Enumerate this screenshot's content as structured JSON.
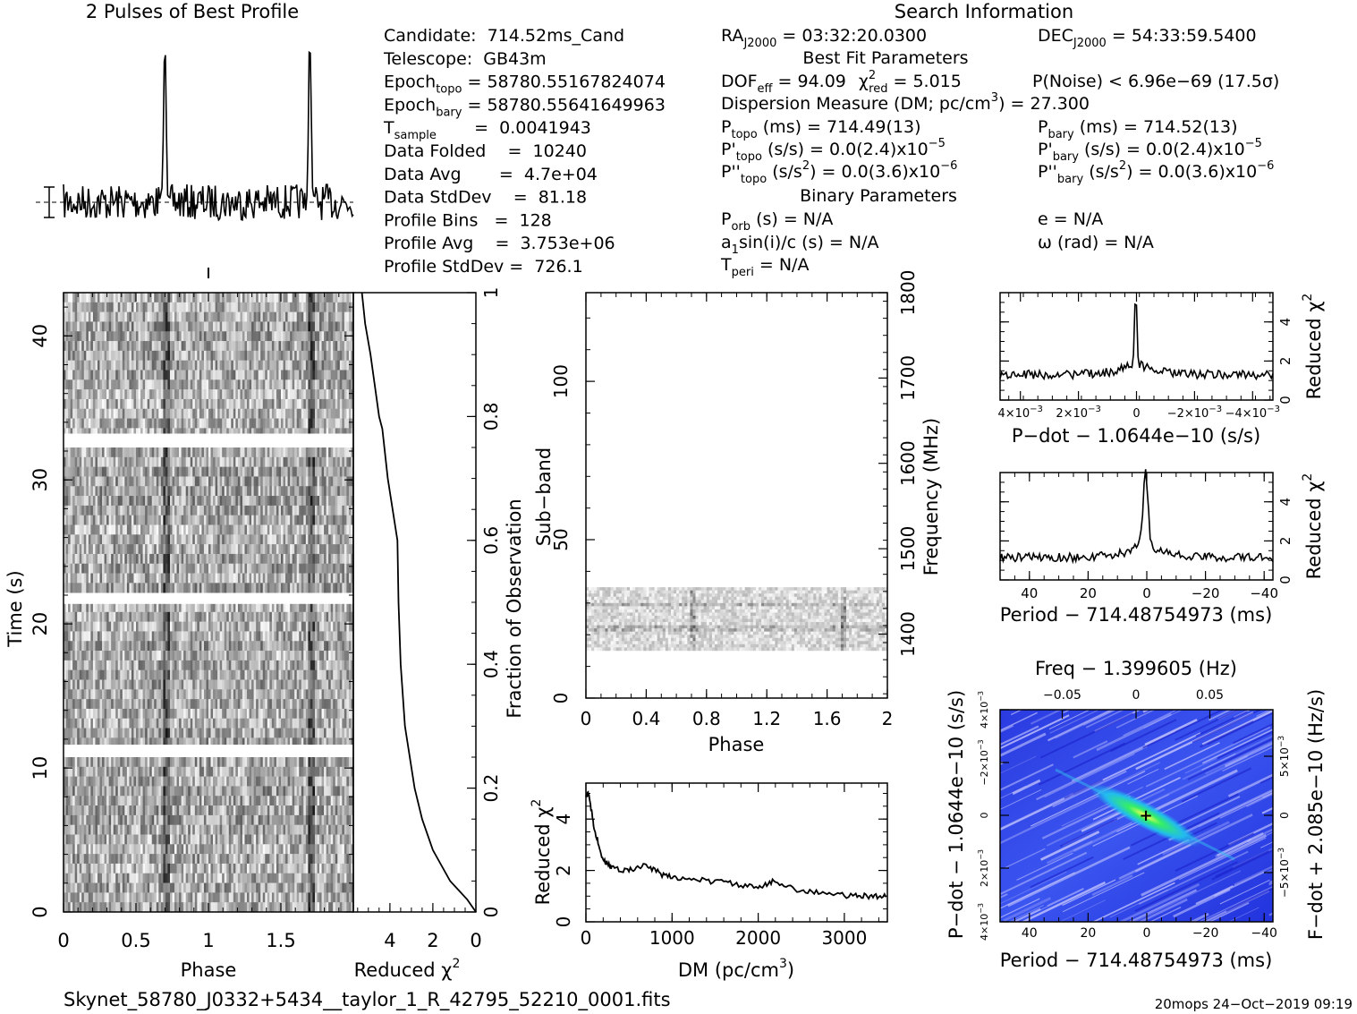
{
  "profile": {
    "title": "2 Pulses of Best Profile",
    "chart_data": {
      "type": "line",
      "title": "2 Pulses of Best Profile",
      "x_range": [
        0,
        2
      ],
      "peaks_at_phase": [
        0.7,
        1.7
      ],
      "pulses": 2
    }
  },
  "info": {
    "search_title": "Search Information",
    "col1": [
      [
        "Candidate:  714.52ms_Cand"
      ],
      [
        "Telescope:  GB43m"
      ],
      [
        "Epoch",
        "topo",
        " = 58780.55167824074"
      ],
      [
        "Epoch",
        "bary",
        " = 58780.55641649963"
      ],
      [
        "T",
        "sample",
        "       =  0.0041943"
      ],
      [
        "Data Folded    =  10240"
      ],
      [
        "Data Avg       =  4.7e+04"
      ],
      [
        "Data StdDev    =  81.18"
      ],
      [
        "Profile Bins   =  128"
      ],
      [
        "Profile Avg    =  3.753e+06"
      ],
      [
        "Profile StdDev =  726.1"
      ]
    ],
    "ra": "RA",
    "ra_sub": "J2000",
    "ra_val": " = 03:32:20.0300",
    "dec": "DEC",
    "dec_sub": "J2000",
    "dec_val": " = 54:33:59.5400",
    "best_fit_title": "Best Fit Parameters",
    "dof": "DOF",
    "dof_sub": "eff",
    "dof_val": " = 94.09",
    "chi": "χ",
    "chi_sup": "2",
    "chi_sub": "red",
    "chi_val": " = 5.015",
    "pnoise": "P(Noise) < 6.96e−69  (17.5σ)",
    "dm_line": "Dispersion Measure (DM; pc/cm",
    "dm_sup": "3",
    "dm_val": ") = 27.300",
    "ptopo": "P",
    "ptopo_sub": "topo",
    "ptopo_val": " (ms) =  714.49(13)",
    "pbary": "P",
    "pbary_sub": "bary",
    "pbary_val": " (ms) =  714.52(13)",
    "pdtopo": "P'",
    "pdtopo_sub": "topo",
    "pdtopo_val": " (s/s) = 0.0(2.4)x10",
    "pdtopo_exp": "−5",
    "pdbary": "P'",
    "pdbary_sub": "bary",
    "pdbary_val": " (s/s) = 0.0(2.4)x10",
    "pdbary_exp": "−5",
    "pddtopo": "P''",
    "pddtopo_sub": "topo",
    "pddtopo_val": " (s/s",
    "pddtopo_sup": "2",
    "pddtopo_val2": ") = 0.0(3.6)x10",
    "pddtopo_exp": "−6",
    "pddbary": "P''",
    "pddbary_sub": "bary",
    "pddbary_val": " (s/s",
    "pddbary_sup": "2",
    "pddbary_val2": ") = 0.0(3.6)x10",
    "pddbary_exp": "−6",
    "binary_title": "Binary Parameters",
    "porb": "P",
    "porb_sub": "orb",
    "porb_val": " (s) = N/A",
    "ecc": "e = N/A",
    "a1sini": "a",
    "a1sini_sub": "1",
    "a1sini_val": "sin(i)/c (s) = N/A",
    "omega": "ω (rad) = N/A",
    "tperi": "T",
    "tperi_sub": "peri",
    "tperi_val": " = N/A"
  },
  "time_phase": {
    "ylabel": "Time (s)",
    "xlabel": "Phase",
    "xticks": [
      "0",
      "0.5",
      "1",
      "1.5"
    ],
    "yticks": [
      "0",
      "10",
      "20",
      "30",
      "40"
    ],
    "chart_data": {
      "type": "heatmap",
      "x_range": [
        0,
        2
      ],
      "y_range": [
        0,
        43
      ],
      "gaps_at_time": [
        11.3,
        21.7,
        32.9
      ],
      "pulse_phase": [
        0.7,
        1.7
      ]
    }
  },
  "chi_vs_time": {
    "xlabel": "Reduced χ",
    "xlabel_sup": "2",
    "xticks": [
      "4",
      "2",
      "0"
    ],
    "right_label": "Fraction of Observation",
    "right_ticks": [
      "0",
      "0.2",
      "0.4",
      "0.6",
      "0.8",
      "1"
    ],
    "chart_data": {
      "type": "line",
      "xlim": [
        5.7,
        0
      ],
      "ylim": [
        0,
        1
      ],
      "fraction": [
        0,
        0.02,
        0.05,
        0.1,
        0.15,
        0.2,
        0.3,
        0.4,
        0.5,
        0.6,
        0.7,
        0.78,
        0.8,
        0.85,
        0.9,
        0.95,
        1.0
      ],
      "chi": [
        0,
        0.4,
        1.2,
        2.0,
        2.5,
        2.85,
        3.3,
        3.5,
        3.6,
        3.65,
        4.1,
        4.35,
        4.5,
        4.7,
        4.9,
        5.15,
        5.3
      ]
    }
  },
  "subband": {
    "ylabel": "Sub−band",
    "xlabel": "Phase",
    "xticks": [
      "0",
      "0.4",
      "0.8",
      "1.2",
      "1.6",
      "2"
    ],
    "yticks": [
      "0",
      "50",
      "100"
    ],
    "right_label": "Frequency (MHz)",
    "right_ticks": [
      "1400",
      "1500",
      "1600",
      "1700",
      "1800"
    ],
    "chart_data": {
      "type": "heatmap",
      "x_range": [
        0,
        2
      ],
      "y_range": [
        0,
        128
      ],
      "occupied_subbands": [
        15,
        35
      ],
      "freq_range_mhz": [
        1325,
        1800
      ]
    }
  },
  "dm": {
    "ylabel": "Reduced χ",
    "ylabel_sup": "2",
    "xlabel": "DM (pc/cm",
    "xlabel_sup": "3",
    "xlabel_end": ")",
    "xticks": [
      "0",
      "1000",
      "2000",
      "3000"
    ],
    "yticks": [
      "0",
      "2",
      "4"
    ],
    "chart_data": {
      "type": "line",
      "xlim": [
        0,
        3500
      ],
      "ylim": [
        0,
        5.4
      ],
      "x": [
        0,
        30,
        100,
        200,
        300,
        500,
        700,
        900,
        1100,
        1400,
        1700,
        2000,
        2200,
        2500,
        2800,
        3100,
        3300,
        3500
      ],
      "y": [
        4.9,
        5.0,
        3.6,
        2.4,
        2.1,
        2.0,
        2.2,
        1.8,
        1.7,
        1.6,
        1.5,
        1.3,
        1.6,
        1.2,
        1.1,
        1.0,
        1.0,
        1.0
      ]
    }
  },
  "pdot": {
    "xlabel": "P−dot − 1.0644e−10 (s/s)",
    "ylabel": "Reduced χ",
    "ylabel_sup": "2",
    "xticks": [
      "4×10",
      "2×10",
      "0",
      "−2×10",
      "−4×10"
    ],
    "xticks_exp": [
      "−3",
      "−3",
      "",
      "−3",
      "−3"
    ],
    "yticks": [
      "0",
      "2",
      "4"
    ],
    "chart_data": {
      "type": "line",
      "x_range": [
        0.0047,
        -0.0047
      ],
      "ylim": [
        0,
        5.5
      ],
      "peak": {
        "x": 0,
        "y": 5.0
      },
      "baseline": 1.3
    }
  },
  "period": {
    "xlabel": "Period − 714.48754973 (ms)",
    "ylabel": "Reduced χ",
    "ylabel_sup": "2",
    "xticks": [
      "40",
      "20",
      "0",
      "−20",
      "−40"
    ],
    "yticks": [
      "0",
      "2",
      "4"
    ],
    "chart_data": {
      "type": "line",
      "x_range": [
        50,
        -43
      ],
      "ylim": [
        0,
        5.5
      ],
      "peak": {
        "x": 0,
        "y": 5.0
      },
      "baseline": 1.2
    }
  },
  "ppdot": {
    "top_label": "Freq − 1.399605 (Hz)",
    "top_ticks": [
      "−0.05",
      "0",
      "0.05"
    ],
    "xlabel": "Period − 714.48754973 (ms)",
    "xticks": [
      "40",
      "20",
      "0",
      "−20",
      "−40"
    ],
    "ylabel": "P−dot − 1.0644e−10 (s/s)",
    "yticks": [
      "4×10",
      "2×10",
      "0",
      "−2×10",
      "4×10"
    ],
    "yticks_exp": [
      "−3",
      "−3",
      "",
      "−3",
      "−3"
    ],
    "right_label": "F−dot + 2.085e−10 (Hz/s)",
    "right_ticks": [
      "−5×10",
      "0",
      "5×10"
    ],
    "right_ticks_exp": [
      "−3",
      "",
      "−3"
    ],
    "chart_data": {
      "type": "heatmap",
      "x_range": [
        50,
        -43
      ],
      "best": {
        "period": 0,
        "pdot": 0
      }
    },
    "colors": {
      "bg": "#3344ee",
      "hot": "#33dd55",
      "streak": "#c8c8ff"
    }
  },
  "footer": {
    "filename": "Skynet_58780_J0332+5434__taylor_1_R_42795_52210_0001.fits",
    "stamp": "20mops 24−Oct−2019 09:19"
  }
}
